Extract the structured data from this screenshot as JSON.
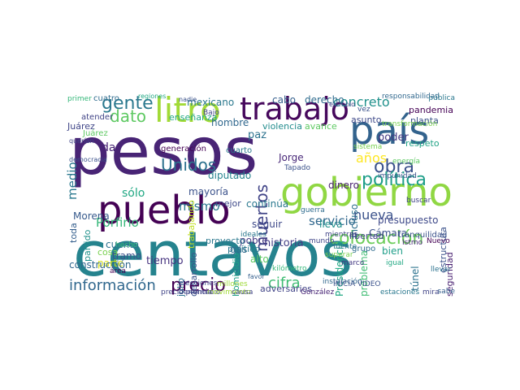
{
  "words": [
    {
      "text": "pesos",
      "color": "#482475",
      "vertical": false
    },
    {
      "text": "centavos",
      "color": "#25838e",
      "vertical": false
    },
    {
      "text": "país",
      "color": "#33638d",
      "vertical": false
    },
    {
      "text": "gobierno",
      "color": "#90d743",
      "vertical": false
    },
    {
      "text": "pueblo",
      "color": "#440154",
      "vertical": false
    },
    {
      "text": "litro",
      "color": "#a2da37",
      "vertical": false
    },
    {
      "text": "trabajo",
      "color": "#46085c",
      "vertical": false
    },
    {
      "text": "obra",
      "color": "#3b528b",
      "vertical": false
    },
    {
      "text": "política",
      "color": "#1f9e89",
      "vertical": false
    },
    {
      "text": "colocación",
      "color": "#6ccd5a",
      "vertical": false
    },
    {
      "text": "información",
      "color": "#31688e",
      "vertical": false
    },
    {
      "text": "precio",
      "color": "#440154",
      "vertical": false
    },
    {
      "text": "cifra",
      "color": "#3fbc73",
      "vertical": false
    },
    {
      "text": "gente",
      "color": "#2a788e",
      "vertical": false
    },
    {
      "text": "concreto",
      "color": "#21918c",
      "vertical": false
    },
    {
      "text": "dato",
      "color": "#5ec962",
      "vertical": false
    },
    {
      "text": "Unidos",
      "color": "#2c728e",
      "vertical": false
    },
    {
      "text": "muertos",
      "color": "#414487",
      "vertical": true
    },
    {
      "text": "nueva",
      "color": "#3b528b",
      "vertical": false
    },
    {
      "text": "años",
      "color": "#fde725",
      "vertical": false
    },
    {
      "text": "medio",
      "color": "#2a788e",
      "vertical": true
    },
    {
      "text": "sólo",
      "color": "#22a884",
      "vertical": false
    },
    {
      "text": "Porfirio",
      "color": "#35b779",
      "vertical": false
    },
    {
      "text": "mismo",
      "color": "#2a788e",
      "vertical": false
    },
    {
      "text": "servicio",
      "color": "#31688e",
      "vertical": false
    },
    {
      "text": "poder",
      "color": "#443983",
      "vertical": false
    },
    {
      "text": "presupuesto",
      "color": "#3e4989",
      "vertical": false
    },
    {
      "text": "historia",
      "color": "#433e85",
      "vertical": false
    },
    {
      "text": "tiempo",
      "color": "#46337f",
      "vertical": false
    },
    {
      "text": "dar",
      "color": "#482475",
      "vertical": false
    },
    {
      "text": "diputado",
      "color": "#25838e",
      "vertical": false
    },
    {
      "text": "cosa",
      "color": "#7ad151",
      "vertical": false
    },
    {
      "text": "Morena",
      "color": "#375a8c",
      "vertical": false
    },
    {
      "text": "partido",
      "color": "#21918c",
      "vertical": true
    },
    {
      "text": "cuenta",
      "color": "#2d708e",
      "vertical": false
    },
    {
      "text": "tramo",
      "color": "#3b528b",
      "vertical": false
    },
    {
      "text": "parte",
      "color": "#d8e219",
      "vertical": false
    },
    {
      "text": "construcción",
      "color": "#31688e",
      "vertical": false
    },
    {
      "text": "toda",
      "color": "#355f8d",
      "vertical": true
    },
    {
      "text": "Presidencia",
      "color": "#22a884",
      "vertical": true
    },
    {
      "text": "problema",
      "color": "#3fbc73",
      "vertical": true
    },
    {
      "text": "túnel",
      "color": "#2c728e",
      "vertical": true
    },
    {
      "text": "bien",
      "color": "#1f9e89",
      "vertical": false
    },
    {
      "text": "seguridad",
      "color": "#481f70",
      "vertical": true
    },
    {
      "text": "mexicano",
      "color": "#2a788e",
      "vertical": false
    },
    {
      "text": "cabo",
      "color": "#355f8d",
      "vertical": false
    },
    {
      "text": "derecho",
      "color": "#2f6c8e",
      "vertical": false
    },
    {
      "text": "cuatro",
      "color": "#2f6c8e",
      "vertical": false
    },
    {
      "text": "primer",
      "color": "#35b779",
      "vertical": false
    },
    {
      "text": "Juárez",
      "color": "#404688",
      "vertical": false
    },
    {
      "text": "enseñanza",
      "color": "#22a884",
      "vertical": false
    },
    {
      "text": "violencia",
      "color": "#228c8d",
      "vertical": false
    },
    {
      "text": "avance",
      "color": "#5ec962",
      "vertical": false
    },
    {
      "text": "asunto",
      "color": "#3e4989",
      "vertical": false
    },
    {
      "text": "pandemia",
      "color": "#440154",
      "vertical": false
    },
    {
      "text": "planta",
      "color": "#3b528b",
      "vertical": false
    },
    {
      "text": "respeto",
      "color": "#20a386",
      "vertical": false
    },
    {
      "text": "paz",
      "color": "#2c728e",
      "vertical": false
    },
    {
      "text": "Jorge",
      "color": "#482878",
      "vertical": false
    },
    {
      "text": "mayoría",
      "color": "#3b528b",
      "vertical": false
    },
    {
      "text": "continúa",
      "color": "#2a788e",
      "vertical": false
    },
    {
      "text": "mejor",
      "color": "#3e4989",
      "vertical": false
    },
    {
      "text": "hombre",
      "color": "#31688e",
      "vertical": false
    },
    {
      "text": "incluso",
      "color": "#2d708e",
      "vertical": true
    },
    {
      "text": "dinero",
      "color": "#481f70",
      "vertical": false
    },
    {
      "text": "lleva",
      "color": "#21918c",
      "vertical": false
    },
    {
      "text": "Cámara",
      "color": "#3b528b",
      "vertical": false
    },
    {
      "text": "libertad",
      "color": "#414487",
      "vertical": false
    },
    {
      "text": "pobre",
      "color": "#443983",
      "vertical": false
    },
    {
      "text": "alto",
      "color": "#5ec962",
      "vertical": false
    },
    {
      "text": "gas",
      "color": "#31688e",
      "vertical": false
    },
    {
      "text": "adversarios",
      "color": "#414487",
      "vertical": false
    },
    {
      "text": "seguir",
      "color": "#3e4989",
      "vertical": false
    },
    {
      "text": "proyecto",
      "color": "#2a788e",
      "vertical": false
    },
    {
      "text": "julio",
      "color": "#2c728e",
      "vertical": true
    },
    {
      "text": "desarrollo",
      "color": "#3b528b",
      "vertical": true
    },
    {
      "text": "homicidio",
      "color": "#1fa187",
      "vertical": true
    },
    {
      "text": "político",
      "color": "#2a788e",
      "vertical": false
    },
    {
      "text": "estructura",
      "color": "#3b528b",
      "vertical": true
    },
    {
      "text": "atender",
      "color": "#414487",
      "vertical": false
    },
    {
      "text": "tranquilidad",
      "color": "#3b528b",
      "vertical": false
    },
    {
      "text": "Nuevo",
      "color": "#440154",
      "vertical": false
    },
    {
      "text": "grupo",
      "color": "#2f6c8e",
      "vertical": false
    },
    {
      "text": "precio promedio",
      "color": "#414487",
      "vertical": false
    },
    {
      "text": "González",
      "color": "#482475",
      "vertical": false
    },
    {
      "text": "movimiento",
      "color": "#a2da37",
      "vertical": false
    },
    {
      "text": "millones",
      "color": "#9fda3a",
      "vertical": false
    },
    {
      "text": "elecciones",
      "color": "#404688",
      "vertical": false
    },
    {
      "text": "área",
      "color": "#440154",
      "vertical": false
    },
    {
      "text": "hecho",
      "color": "#35b779",
      "vertical": false
    },
    {
      "text": "regiones",
      "color": "#22a884",
      "vertical": false
    },
    {
      "text": "Juárez",
      "color": "#5ec962",
      "vertical": false
    },
    {
      "text": "instalación",
      "color": "#31688e",
      "vertical": false
    },
    {
      "text": "INICIA VIDEO",
      "color": "#3b528b",
      "vertical": false
    },
    {
      "text": "responsabilidad",
      "color": "#31688e",
      "vertical": false
    },
    {
      "text": "pública",
      "color": "#2a788e",
      "vertical": false
    },
    {
      "text": "generación",
      "color": "#440154",
      "vertical": false
    },
    {
      "text": "democracia",
      "color": "#3b528b",
      "vertical": false
    },
    {
      "text": "querían",
      "color": "#404688",
      "vertical": false
    },
    {
      "text": "trabajando",
      "color": "#c2df23",
      "vertical": true
    },
    {
      "text": "cuarto",
      "color": "#2a788e",
      "vertical": false
    },
    {
      "text": "Tapado",
      "color": "#3b528b",
      "vertical": false
    },
    {
      "text": "ejemplo",
      "color": "#414487",
      "vertical": false
    },
    {
      "text": "denuncia",
      "color": "#414487",
      "vertical": false
    },
    {
      "text": "kilómetro",
      "color": "#35b779",
      "vertical": false
    },
    {
      "text": "favor",
      "color": "#355f8d",
      "vertical": false
    },
    {
      "text": "llevar",
      "color": "#2c728e",
      "vertical": false
    },
    {
      "text": "mira",
      "color": "#414487",
      "vertical": false
    },
    {
      "text": "sabe",
      "color": "#355f8d",
      "vertical": false
    },
    {
      "text": "Istmo",
      "color": "#482878",
      "vertical": false
    },
    {
      "text": "marco",
      "color": "#443983",
      "vertical": false
    },
    {
      "text": "mundo",
      "color": "#404688",
      "vertical": false
    },
    {
      "text": "superar",
      "color": "#7ad151",
      "vertical": false
    },
    {
      "text": "fuente",
      "color": "#2c728e",
      "vertical": false
    },
    {
      "text": "Bajo",
      "color": "#414487",
      "vertical": false
    },
    {
      "text": "causa",
      "color": "#414487",
      "vertical": false
    },
    {
      "text": "vez",
      "color": "#3b528b",
      "vertical": false
    },
    {
      "text": "ideales",
      "color": "#2a788e",
      "vertical": false
    },
    {
      "text": "guerra",
      "color": "#2f6c8e",
      "vertical": false
    },
    {
      "text": "sistema",
      "color": "#7ad151",
      "vertical": false
    },
    {
      "text": "transformación",
      "color": "#7ad151",
      "vertical": false
    },
    {
      "text": "energía",
      "color": "#5ec962",
      "vertical": false
    },
    {
      "text": "impunidad",
      "color": "#3b528b",
      "vertical": false
    },
    {
      "text": "nadie",
      "color": "#3b528b",
      "vertical": false
    },
    {
      "text": "estaciones",
      "color": "#2a788e",
      "vertical": false
    },
    {
      "text": "buscar",
      "color": "#414487",
      "vertical": false
    },
    {
      "text": "igual",
      "color": "#22a884",
      "vertical": false
    },
    {
      "text": "mientras",
      "color": "#414487",
      "vertical": false
    }
  ]
}
